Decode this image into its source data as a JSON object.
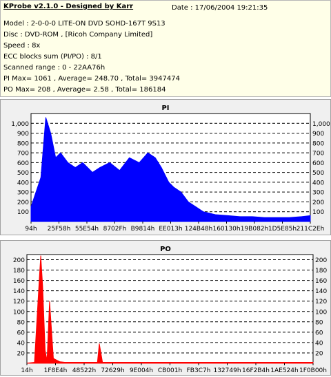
{
  "header": {
    "app_title": "KProbe v2.1.0 - Designed by Karr",
    "date": "Date : 17/06/2004 19:21:35",
    "lines": [
      "Model : 2-0-0-0 LITE-ON DVD SOHD-167T    9S13",
      "Disc : DVD-ROM ,  [Ricoh Company Limited]",
      "Speed : 8x",
      "ECC blocks sum (PI/PO) : 8/1",
      "Scanned range : 0 - 22AA76h",
      "PI Max= 1061 , Average= 248.70 , Total= 3947474",
      "PO Max= 208 , Average= 2.58 , Total= 186184"
    ]
  },
  "colors": {
    "pi": "#0000ff",
    "po": "#ff0000",
    "plot_bg": "#ffffff",
    "grid": "#000000"
  },
  "chart_data": [
    {
      "type": "area",
      "title": "PI",
      "color": "#0000ff",
      "ylim": [
        0,
        1100
      ],
      "yticks": [
        100,
        200,
        300,
        400,
        500,
        600,
        700,
        800,
        900,
        "1,000"
      ],
      "xticks": [
        "94h",
        "25F58h",
        "55E54h",
        "8702Fh",
        "B9814h",
        "EE013h",
        "124B48h",
        "160130h",
        "19B082h",
        "1D5E85h",
        "211C2Eh"
      ],
      "grid": "dashed horizontal",
      "x_range": [
        0,
        2271862
      ],
      "series": [
        {
          "x": [
            0,
            80000,
            120000,
            160000,
            200000,
            240000,
            300000,
            360000,
            420000,
            500000,
            560000,
            640000,
            720000,
            800000,
            880000,
            950000,
            1010000,
            1060000,
            1120000,
            1160000,
            1220000,
            1280000,
            1340000,
            1400000,
            1500000,
            1600000,
            1700000,
            1800000,
            1900000,
            2000000,
            2100000,
            2200000,
            2271862
          ],
          "y": [
            150,
            450,
            1061,
            900,
            650,
            700,
            600,
            550,
            600,
            500,
            550,
            600,
            520,
            650,
            600,
            700,
            650,
            550,
            400,
            350,
            300,
            200,
            150,
            100,
            70,
            60,
            50,
            50,
            40,
            40,
            40,
            50,
            60
          ]
        }
      ]
    },
    {
      "type": "area",
      "title": "PO",
      "color": "#ff0000",
      "ylim": [
        0,
        210
      ],
      "yticks": [
        20,
        40,
        60,
        80,
        100,
        120,
        140,
        160,
        180,
        200
      ],
      "xticks": [
        "14h",
        "1F8E4h",
        "48522h",
        "72629h",
        "9E004h",
        "CB001h",
        "FB3C7h",
        "132749h",
        "16F2B4h",
        "1AE524h",
        "1F0B00h"
      ],
      "grid": "dashed horizontal",
      "x_range": [
        0,
        2271862
      ],
      "series": [
        {
          "x": [
            0,
            60000,
            100000,
            110000,
            125000,
            145000,
            160000,
            180000,
            210000,
            220000,
            260000,
            300000,
            400000,
            560000,
            575000,
            600000,
            800000,
            1000000,
            1200000,
            1400000,
            1600000,
            1800000,
            2000000,
            2200000,
            2271862
          ],
          "y": [
            0,
            2,
            170,
            208,
            150,
            25,
            5,
            120,
            10,
            8,
            3,
            2,
            2,
            2,
            38,
            2,
            2,
            2,
            2,
            2,
            2,
            2,
            2,
            2,
            2
          ]
        }
      ]
    }
  ]
}
